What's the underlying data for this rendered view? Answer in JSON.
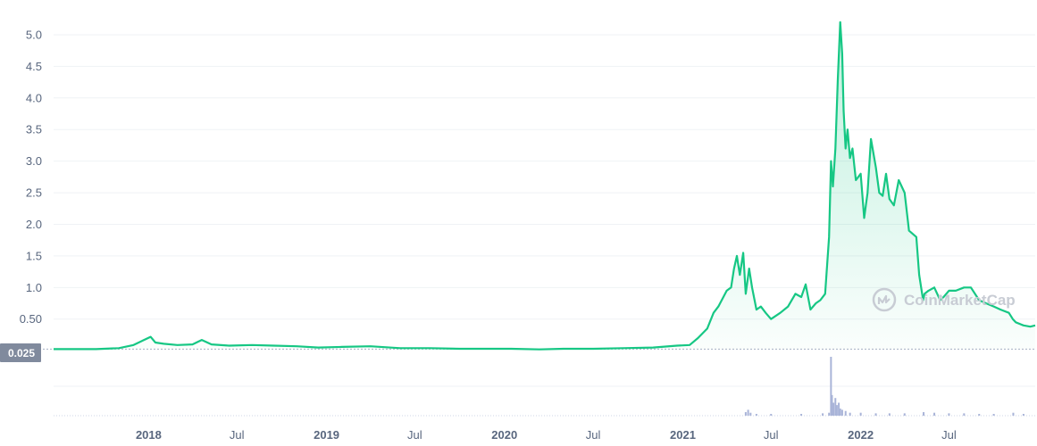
{
  "chart_data": {
    "type": "area",
    "title": "",
    "xlabel": "",
    "ylabel": "",
    "grid": true,
    "y_ticks": [
      "5.0",
      "4.5",
      "4.0",
      "3.5",
      "3.0",
      "2.5",
      "2.0",
      "1.5",
      "1.0",
      "0.50"
    ],
    "y_tick_values": [
      5.0,
      4.5,
      4.0,
      3.5,
      3.0,
      2.5,
      2.0,
      1.5,
      1.0,
      0.5
    ],
    "ylim": [
      -0.04,
      5.55
    ],
    "x_ticks": [
      "2018",
      "Jul",
      "2019",
      "Jul",
      "2020",
      "Jul",
      "2021",
      "Jul",
      "2022",
      "Jul"
    ],
    "x_tick_values": [
      "2018-01-01",
      "2018-07-01",
      "2019-01-01",
      "2019-07-01",
      "2020-01-01",
      "2020-07-01",
      "2021-01-01",
      "2021-07-01",
      "2022-01-01",
      "2022-07-01"
    ],
    "xlim": [
      "2017-06-20",
      "2022-12-25"
    ],
    "current_price_label": "0.025",
    "current_price_value": 0.025,
    "watermark": "CoinMarketCap",
    "color": "#16c784",
    "series": [
      {
        "x": [
          "2017-06-20",
          "2017-09-15",
          "2017-11-01",
          "2017-12-01",
          "2017-12-20",
          "2018-01-05",
          "2018-01-15",
          "2018-02-01",
          "2018-03-01",
          "2018-04-01",
          "2018-04-20",
          "2018-05-10",
          "2018-06-15",
          "2018-08-01",
          "2018-09-15",
          "2018-11-01",
          "2018-12-15",
          "2019-02-01",
          "2019-04-01",
          "2019-06-01",
          "2019-08-01",
          "2019-10-01",
          "2019-12-01",
          "2020-01-15",
          "2020-03-13",
          "2020-05-01",
          "2020-07-01",
          "2020-09-01",
          "2020-11-01",
          "2020-12-20",
          "2021-01-15",
          "2021-02-01",
          "2021-02-20",
          "2021-03-05",
          "2021-03-15",
          "2021-04-01",
          "2021-04-10",
          "2021-04-16",
          "2021-04-22",
          "2021-04-28",
          "2021-05-05",
          "2021-05-10",
          "2021-05-17",
          "2021-05-23",
          "2021-06-01",
          "2021-06-10",
          "2021-06-20",
          "2021-07-01",
          "2021-07-20",
          "2021-08-05",
          "2021-08-20",
          "2021-09-01",
          "2021-09-10",
          "2021-09-20",
          "2021-10-01",
          "2021-10-10",
          "2021-10-20",
          "2021-10-28",
          "2021-11-01",
          "2021-11-05",
          "2021-11-10",
          "2021-11-15",
          "2021-11-20",
          "2021-11-24",
          "2021-11-27",
          "2021-12-01",
          "2021-12-05",
          "2021-12-10",
          "2021-12-15",
          "2021-12-22",
          "2022-01-01",
          "2022-01-08",
          "2022-01-15",
          "2022-01-22",
          "2022-02-01",
          "2022-02-08",
          "2022-02-15",
          "2022-02-22",
          "2022-03-01",
          "2022-03-10",
          "2022-03-20",
          "2022-04-01",
          "2022-04-10",
          "2022-04-25",
          "2022-05-01",
          "2022-05-09",
          "2022-05-12",
          "2022-05-20",
          "2022-06-01",
          "2022-06-13",
          "2022-06-20",
          "2022-07-01",
          "2022-07-15",
          "2022-08-01",
          "2022-08-15",
          "2022-09-01",
          "2022-09-15",
          "2022-10-01",
          "2022-10-15",
          "2022-11-01",
          "2022-11-09",
          "2022-11-15",
          "2022-12-01",
          "2022-12-15",
          "2022-12-25"
        ],
        "values": [
          0.025,
          0.025,
          0.04,
          0.09,
          0.16,
          0.22,
          0.13,
          0.11,
          0.09,
          0.1,
          0.17,
          0.1,
          0.08,
          0.09,
          0.08,
          0.07,
          0.05,
          0.06,
          0.07,
          0.04,
          0.04,
          0.03,
          0.03,
          0.03,
          0.02,
          0.03,
          0.03,
          0.04,
          0.05,
          0.08,
          0.09,
          0.2,
          0.35,
          0.6,
          0.7,
          0.95,
          1.0,
          1.3,
          1.5,
          1.2,
          1.55,
          0.9,
          1.3,
          1.0,
          0.65,
          0.7,
          0.6,
          0.5,
          0.6,
          0.7,
          0.9,
          0.85,
          1.05,
          0.65,
          0.75,
          0.8,
          0.9,
          1.8,
          3.0,
          2.6,
          3.2,
          4.3,
          5.2,
          4.7,
          3.8,
          3.2,
          3.5,
          3.05,
          3.2,
          2.7,
          2.8,
          2.1,
          2.5,
          3.35,
          2.9,
          2.5,
          2.45,
          2.8,
          2.4,
          2.3,
          2.7,
          2.5,
          1.9,
          1.8,
          1.2,
          0.8,
          0.9,
          0.95,
          1.0,
          0.8,
          0.85,
          0.95,
          0.95,
          1.0,
          1.0,
          0.8,
          0.75,
          0.7,
          0.65,
          0.6,
          0.5,
          0.45,
          0.4,
          0.38,
          0.4
        ]
      }
    ],
    "volume": {
      "x": [
        "2021-05-10",
        "2021-05-15",
        "2021-05-20",
        "2021-06-01",
        "2021-07-01",
        "2021-09-01",
        "2021-10-15",
        "2021-10-28",
        "2021-11-01",
        "2021-11-03",
        "2021-11-06",
        "2021-11-10",
        "2021-11-13",
        "2021-11-17",
        "2021-11-20",
        "2021-11-24",
        "2021-12-01",
        "2021-12-10",
        "2022-01-01",
        "2022-02-01",
        "2022-03-01",
        "2022-04-01",
        "2022-05-10",
        "2022-06-01",
        "2022-07-01",
        "2022-08-01",
        "2022-09-01",
        "2022-10-01",
        "2022-11-10",
        "2022-12-01"
      ],
      "values": [
        0.06,
        0.1,
        0.05,
        0.03,
        0.03,
        0.03,
        0.04,
        0.05,
        1.0,
        0.35,
        0.22,
        0.3,
        0.18,
        0.22,
        0.12,
        0.1,
        0.08,
        0.05,
        0.05,
        0.04,
        0.04,
        0.04,
        0.06,
        0.05,
        0.04,
        0.04,
        0.03,
        0.03,
        0.05,
        0.03
      ]
    }
  }
}
